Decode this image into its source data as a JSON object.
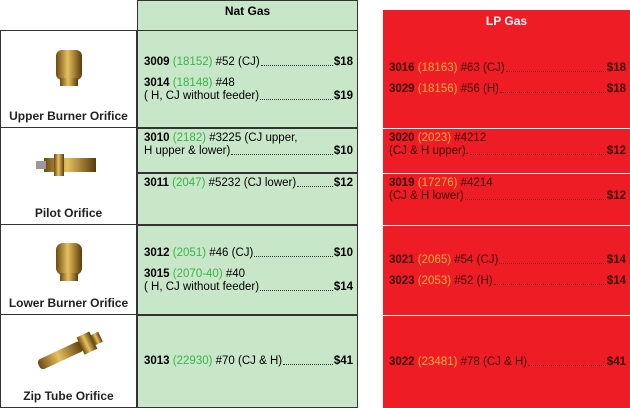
{
  "header": {
    "nat": "Nat Gas",
    "lp": "LP Gas"
  },
  "rows": [
    {
      "label": "Upper Burner Orifice",
      "nat": [
        [
          {
            "part": "3009",
            "alt": "(18152)",
            "lines": [
              "#52 (CJ)"
            ],
            "price": "$18"
          },
          {
            "part": "3014",
            "alt": "(18148)",
            "lines": [
              "#48",
              "( H, CJ without feeder)"
            ],
            "price": "$19"
          }
        ]
      ],
      "lp": [
        [
          {
            "part": "3016",
            "alt": "(18163)",
            "lines": [
              "#63 (CJ)"
            ],
            "price": "$18"
          },
          {
            "part": "3029",
            "alt": "(18156)",
            "lines": [
              "#56 (H)"
            ],
            "price": "$18"
          }
        ]
      ]
    },
    {
      "label": "Pilot Orifice",
      "nat": [
        [
          {
            "part": "3010",
            "alt": "(2182)",
            "lines": [
              "#3225 (CJ upper,",
              "H upper & lower)"
            ],
            "price": "$10"
          }
        ],
        [
          {
            "part": "3011",
            "alt": "(2047)",
            "lines": [
              "#5232 (CJ lower)"
            ],
            "price": "$12"
          }
        ]
      ],
      "lp": [
        [
          {
            "part": "3020",
            "alt": "(2023)",
            "lines": [
              "#4212",
              "(CJ & H upper)."
            ],
            "price": "$12"
          }
        ],
        [
          {
            "part": "3019",
            "alt": "(17276)",
            "lines": [
              "#4214",
              "(CJ & H lower)"
            ],
            "price": "$12"
          }
        ]
      ]
    },
    {
      "label": "Lower Burner Orifice",
      "nat": [
        [
          {
            "part": "3012",
            "alt": "(2051)",
            "lines": [
              "#46 (CJ)"
            ],
            "price": "$10"
          },
          {
            "part": "3015",
            "alt": "(2070-40)",
            "lines": [
              "#40",
              "( H, CJ without feeder)"
            ],
            "price": "$14"
          }
        ]
      ],
      "lp": [
        [
          {
            "part": "3021",
            "alt": "(2065)",
            "lines": [
              "#54 (CJ)"
            ],
            "price": "$14"
          },
          {
            "part": "3023",
            "alt": "(2053)",
            "lines": [
              "#52 (H)"
            ],
            "price": "$14"
          }
        ]
      ]
    },
    {
      "label": "Zip Tube Orifice",
      "nat": [
        [
          {
            "part": "3013",
            "alt": "(22930)",
            "lines": [
              "#70 (CJ & H)"
            ],
            "price": "$41"
          }
        ]
      ],
      "lp": [
        [
          {
            "part": "3022",
            "alt": "(23481)",
            "lines": [
              "#78 (CJ & H)"
            ],
            "price": "$41"
          }
        ]
      ]
    }
  ]
}
